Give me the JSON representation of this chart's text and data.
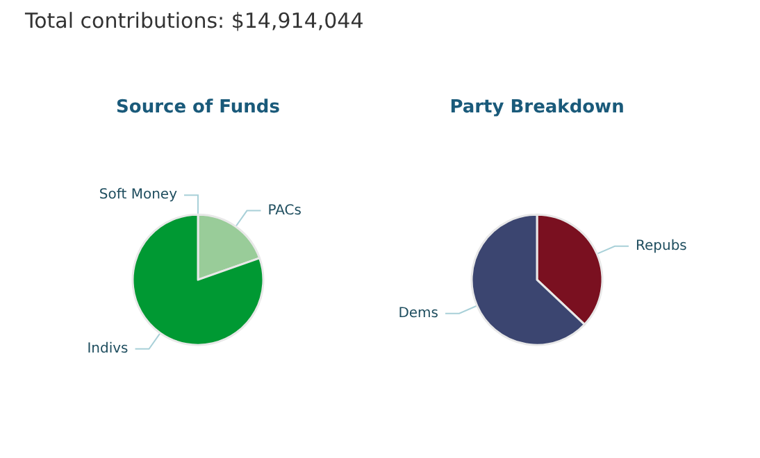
{
  "chart_data": [
    {
      "type": "pie",
      "title": "Source of Funds",
      "annotations": [
        "Total contributions: $14,914,044"
      ],
      "categories": [
        "Soft Money",
        "PACs",
        "Indivs"
      ],
      "values": [
        0,
        19.6,
        80.4
      ],
      "colors": [
        "#c8e6c9",
        "#99cc99",
        "#009933"
      ]
    },
    {
      "type": "pie",
      "title": "Party Breakdown",
      "categories": [
        "Repubs",
        "Dems"
      ],
      "values": [
        37,
        63
      ],
      "colors": [
        "#7a1020",
        "#3b4570"
      ]
    }
  ]
}
